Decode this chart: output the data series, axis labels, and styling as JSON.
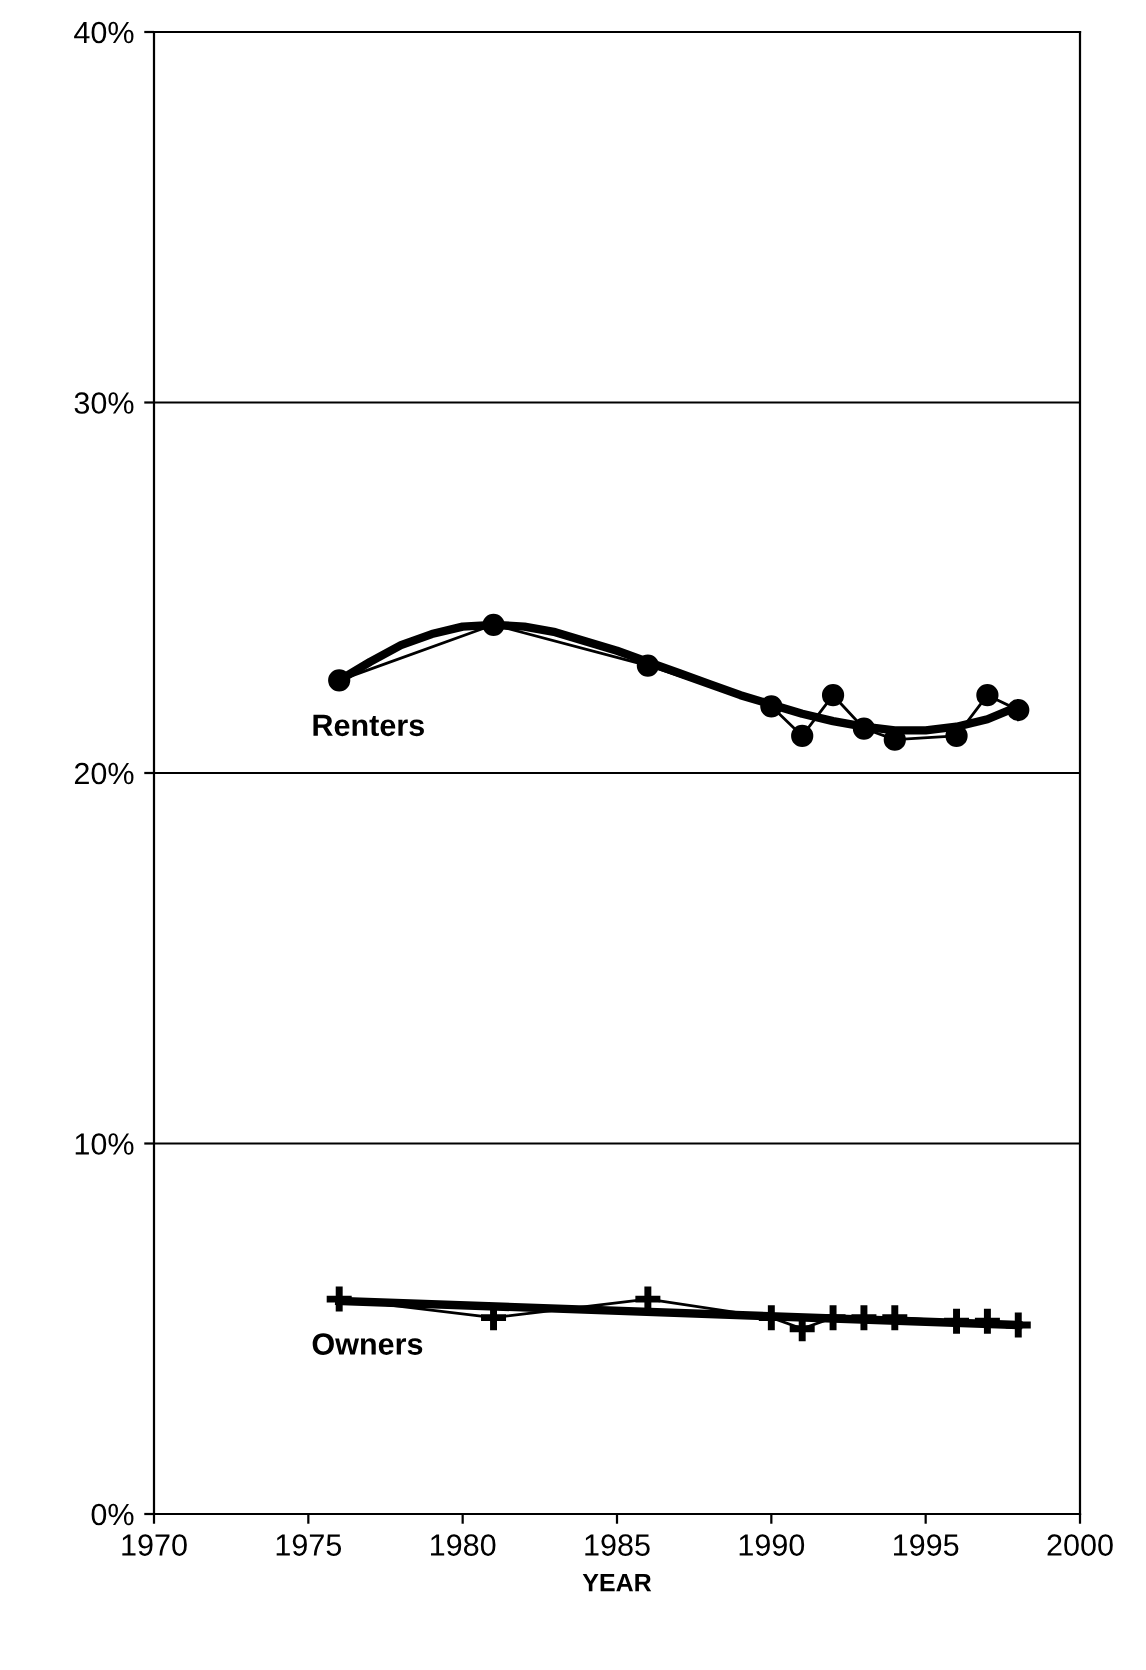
{
  "chart_data": {
    "type": "line",
    "xlabel": "YEAR",
    "xlim": [
      1970,
      2000
    ],
    "xticks": [
      1970,
      1975,
      1980,
      1985,
      1990,
      1995,
      2000
    ],
    "ylim": [
      0,
      40
    ],
    "yticks": [
      {
        "value": 0,
        "label": "0%"
      },
      {
        "value": 10,
        "label": "10%"
      },
      {
        "value": 20,
        "label": "20%"
      },
      {
        "value": 30,
        "label": "30%"
      },
      {
        "value": 40,
        "label": "40%"
      }
    ],
    "grid": "y",
    "series": [
      {
        "name": "Renters",
        "color": "#000000",
        "marker": "circle",
        "x": [
          1976,
          1981,
          1986,
          1990,
          1991,
          1992,
          1993,
          1994,
          1996,
          1997,
          1998
        ],
        "values": [
          22.5,
          24.0,
          22.9,
          21.8,
          21.0,
          22.1,
          21.2,
          20.9,
          21.0,
          22.1,
          21.7
        ]
      },
      {
        "name": "Owners",
        "color": "#000000",
        "marker": "cross",
        "x": [
          1976,
          1981,
          1986,
          1990,
          1991,
          1992,
          1993,
          1994,
          1996,
          1997,
          1998
        ],
        "values": [
          5.8,
          5.3,
          5.8,
          5.3,
          5.0,
          5.3,
          5.3,
          5.3,
          5.2,
          5.2,
          5.1
        ]
      },
      {
        "color": "#000000",
        "marker": "none",
        "x": [
          1976,
          1977,
          1978,
          1979,
          1980,
          1981,
          1982,
          1983,
          1984,
          1985,
          1986,
          1987,
          1988,
          1989,
          1990,
          1991,
          1992,
          1993,
          1994,
          1995,
          1996,
          1997,
          1998
        ],
        "values": [
          22.5,
          23.0,
          23.45,
          23.75,
          23.95,
          24.0,
          23.95,
          23.8,
          23.55,
          23.3,
          23.0,
          22.7,
          22.4,
          22.1,
          21.85,
          21.6,
          21.4,
          21.25,
          21.15,
          21.15,
          21.25,
          21.45,
          21.8
        ]
      },
      {
        "color": "#000000",
        "marker": "none",
        "x": [
          1976,
          1998
        ],
        "values": [
          5.75,
          5.1
        ]
      }
    ]
  }
}
